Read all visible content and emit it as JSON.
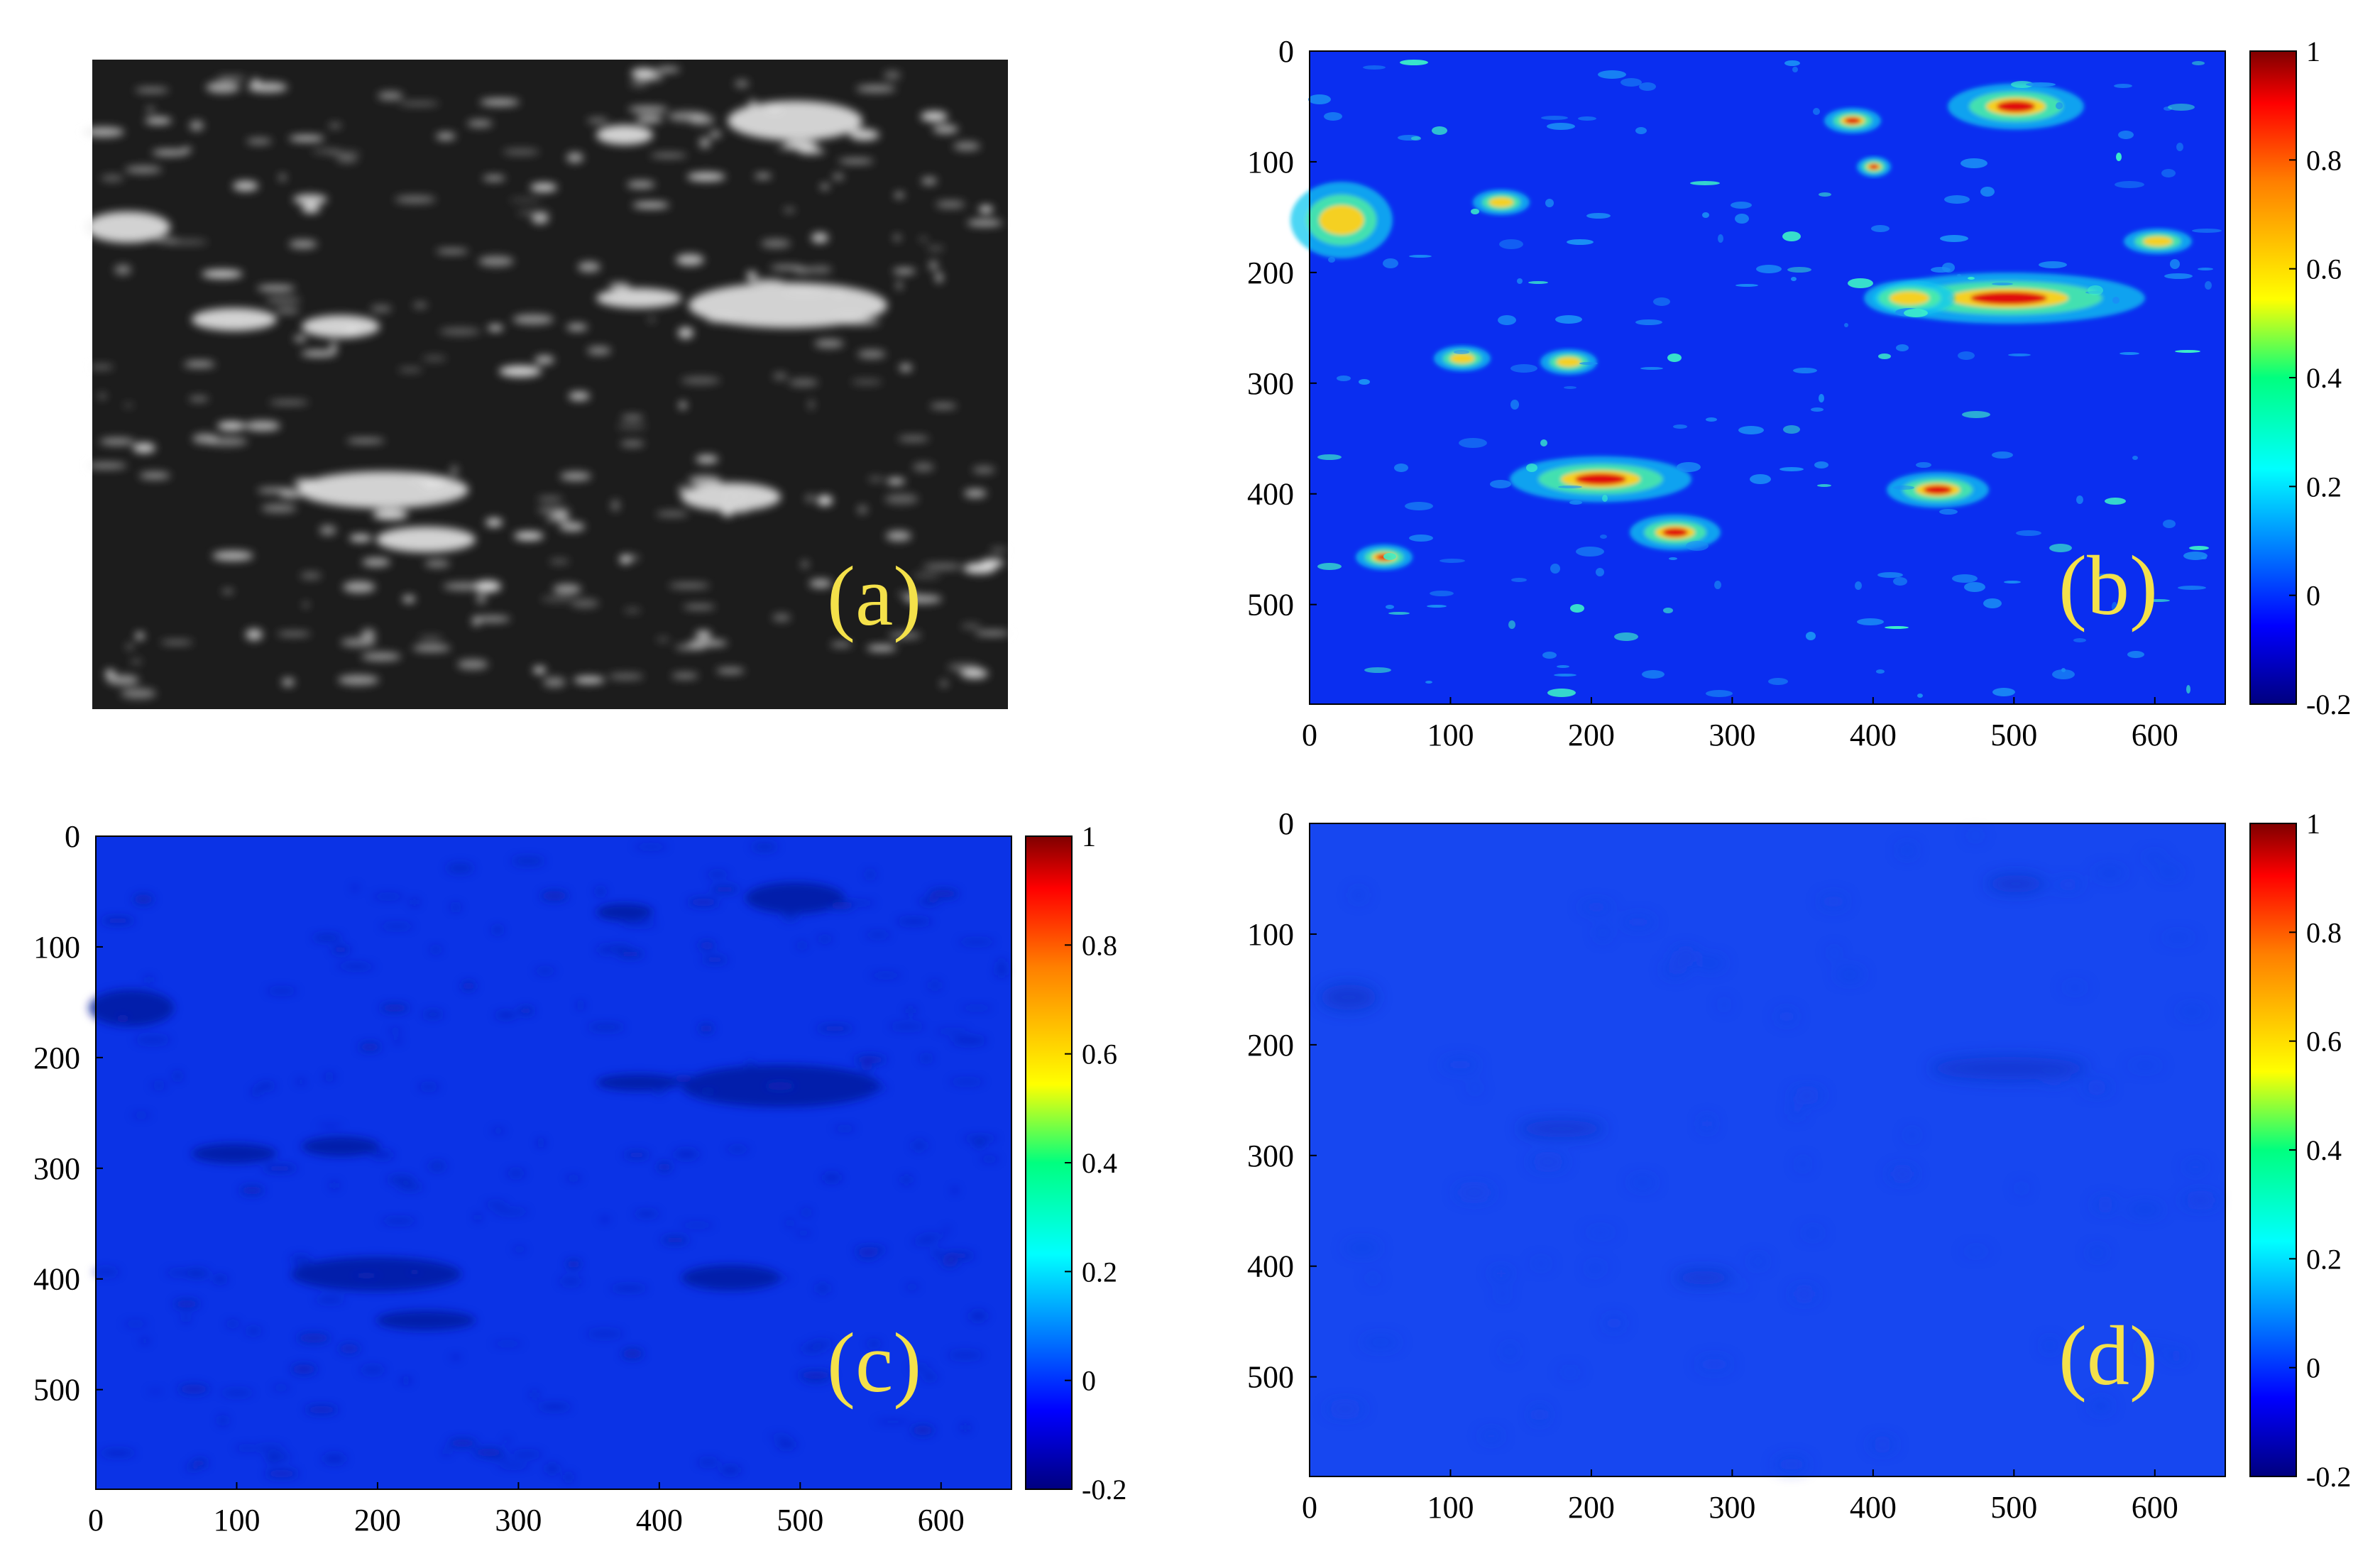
{
  "figure": {
    "panels": [
      {
        "id": "a",
        "label": "(a)",
        "kind": "grayscale-photo"
      },
      {
        "id": "b",
        "label": "(b)",
        "kind": "heatmap",
        "pattern": "bright"
      },
      {
        "id": "c",
        "label": "(c)",
        "kind": "heatmap",
        "pattern": "dark"
      },
      {
        "id": "d",
        "label": "(d)",
        "kind": "heatmap",
        "pattern": "faint"
      }
    ]
  },
  "chart_data": [
    {
      "type": "heatmap",
      "panel": "b",
      "x_ticks": [
        0,
        100,
        200,
        300,
        400,
        500,
        600
      ],
      "y_ticks": [
        0,
        100,
        200,
        300,
        400,
        500
      ],
      "xlim": [
        0,
        650
      ],
      "ylim": [
        0,
        590
      ],
      "colorbar": {
        "ticks": [
          "1",
          "0.8",
          "0.6",
          "0.4",
          "0.2",
          "0",
          "-0.2"
        ],
        "range": [
          -0.2,
          1
        ],
        "colormap": "jet"
      },
      "grid": false
    },
    {
      "type": "heatmap",
      "panel": "c",
      "x_ticks": [
        0,
        100,
        200,
        300,
        400,
        500,
        600
      ],
      "y_ticks": [
        0,
        100,
        200,
        300,
        400,
        500
      ],
      "xlim": [
        0,
        650
      ],
      "ylim": [
        0,
        590
      ],
      "colorbar": {
        "ticks": [
          "1",
          "0.8",
          "0.6",
          "0.4",
          "0.2",
          "0",
          "-0.2"
        ],
        "range": [
          -0.2,
          1
        ],
        "colormap": "jet"
      },
      "grid": false
    },
    {
      "type": "heatmap",
      "panel": "d",
      "x_ticks": [
        0,
        100,
        200,
        300,
        400,
        500,
        600
      ],
      "y_ticks": [
        0,
        100,
        200,
        300,
        400,
        500
      ],
      "xlim": [
        0,
        650
      ],
      "ylim": [
        0,
        590
      ],
      "colorbar": {
        "ticks": [
          "1",
          "0.8",
          "0.6",
          "0.4",
          "0.2",
          "0",
          "-0.2"
        ],
        "range": [
          -0.2,
          1
        ],
        "colormap": "jet"
      },
      "grid": false
    }
  ],
  "colors": {
    "background_blue": "#0a2ef0",
    "panel_c_blue": "#0b33e6",
    "panel_d_blue": "#1747f0",
    "label_yellow": "#f4e14a",
    "photo_dark": "#1c1c1c"
  }
}
